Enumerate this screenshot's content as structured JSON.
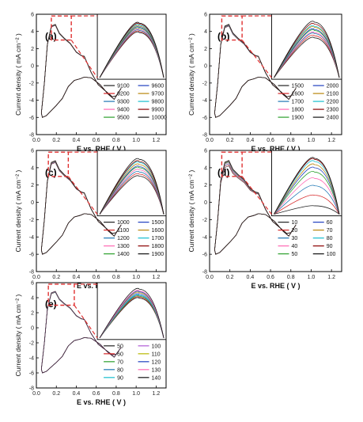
{
  "figure": {
    "ylabel": "Current density ( mA cm⁻² )",
    "xlabel": "E vs. RHE ( V )"
  },
  "chart_data": [
    {
      "type": "line",
      "panel": "(a)",
      "xlabel": "E vs. RHE ( V )",
      "ylabel": "Current density ( mA cm⁻² )",
      "xlim": [
        0.0,
        1.3
      ],
      "ylim": [
        -8,
        6
      ],
      "xticks": [
        "0.0",
        "0.2",
        "0.4",
        "0.6",
        "0.8",
        "1.0",
        "1.2"
      ],
      "yticks": [
        "-8",
        "-6",
        "-4",
        "-2",
        "0",
        "2",
        "4",
        "6"
      ],
      "inset_xrange": [
        0.15,
        0.35
      ],
      "inset_peaks": [
        4.3,
        4.4,
        4.5,
        4.6,
        4.7,
        4.8,
        4.9,
        5.0,
        5.1,
        5.2
      ],
      "legend": [
        "9100",
        "9200",
        "9300",
        "9400",
        "9500",
        "9600",
        "9700",
        "9800",
        "9900",
        "10000"
      ],
      "legend_colors": [
        "#222222",
        "#d62728",
        "#1f77b4",
        "#ff69b4",
        "#2ca02c",
        "#1f3fbf",
        "#b8860b",
        "#17becf",
        "#8b0000",
        "#111111"
      ]
    },
    {
      "type": "line",
      "panel": "(b)",
      "xlabel": "E vs. RHE ( V )",
      "ylabel": "Current density ( mA cm⁻² )",
      "xlim": [
        0.0,
        1.3
      ],
      "ylim": [
        -8,
        6
      ],
      "xticks": [
        "0.0",
        "0.2",
        "0.4",
        "0.6",
        "0.8",
        "1.0",
        "1.2"
      ],
      "yticks": [
        "-8",
        "-6",
        "-4",
        "-2",
        "0",
        "2",
        "4",
        "6"
      ],
      "inset_xrange": [
        0.12,
        0.32
      ],
      "inset_peaks": [
        3.8,
        4.0,
        4.2,
        4.3,
        4.5,
        4.6,
        4.8,
        4.9,
        5.1,
        5.3
      ],
      "legend": [
        "1500",
        "1600",
        "1700",
        "1800",
        "1900",
        "2000",
        "2100",
        "2200",
        "2300",
        "2400"
      ],
      "legend_colors": [
        "#222222",
        "#d62728",
        "#1f77b4",
        "#ff69b4",
        "#2ca02c",
        "#1f3fbf",
        "#b8860b",
        "#17becf",
        "#8b0000",
        "#111111"
      ]
    },
    {
      "type": "line",
      "panel": "(c)",
      "xlabel": "E vs. RHE ( V )",
      "ylabel": "Current density ( mA cm⁻² )",
      "xlim": [
        0.0,
        1.3
      ],
      "ylim": [
        -8,
        6
      ],
      "xticks": [
        "0.0",
        "0.2",
        "0.4",
        "0.6",
        "0.8",
        "1.0",
        "1.2"
      ],
      "yticks": [
        "-8",
        "-6",
        "-4",
        "-2",
        "0",
        "2",
        "4",
        "6"
      ],
      "inset_xrange": [
        0.12,
        0.32
      ],
      "inset_peaks": [
        3.6,
        3.8,
        4.0,
        4.2,
        4.4,
        4.5,
        4.7,
        4.9,
        5.0,
        5.2
      ],
      "legend": [
        "1000",
        "1100",
        "1200",
        "1300",
        "1400",
        "1500",
        "1600",
        "1700",
        "1800",
        "1900"
      ],
      "legend_colors": [
        "#222222",
        "#d62728",
        "#1f77b4",
        "#ff69b4",
        "#2ca02c",
        "#1f3fbf",
        "#b8860b",
        "#17becf",
        "#8b0000",
        "#111111"
      ]
    },
    {
      "type": "line",
      "panel": "(d)",
      "xlabel": "E vs. RHE ( V )",
      "ylabel": "Current density ( mA cm⁻² )",
      "xlim": [
        0.0,
        1.3
      ],
      "ylim": [
        -8,
        6
      ],
      "xticks": [
        "0.0",
        "0.2",
        "0.4",
        "0.6",
        "0.8",
        "1.0",
        "1.2"
      ],
      "yticks": [
        "-8",
        "-6",
        "-4",
        "-2",
        "0",
        "2",
        "4",
        "6"
      ],
      "inset_xrange": [
        0.12,
        0.32
      ],
      "inset_peaks": [
        0.8,
        1.8,
        2.7,
        3.4,
        4.0,
        4.4,
        4.7,
        5.0,
        5.2,
        5.3
      ],
      "legend": [
        "10",
        "20",
        "30",
        "40",
        "50",
        "60",
        "70",
        "80",
        "90",
        "100"
      ],
      "legend_colors": [
        "#222222",
        "#d62728",
        "#1f77b4",
        "#ff69b4",
        "#2ca02c",
        "#1f3fbf",
        "#b8860b",
        "#17becf",
        "#8b0000",
        "#111111"
      ]
    },
    {
      "type": "line",
      "panel": "(e)",
      "xlabel": "E vs. RHE ( V )",
      "ylabel": "Current density ( mA cm⁻² )",
      "xlim": [
        0.0,
        1.3
      ],
      "ylim": [
        -8,
        6
      ],
      "xticks": [
        "0.0",
        "0.2",
        "0.4",
        "0.6",
        "0.8",
        "1.0",
        "1.2"
      ],
      "yticks": [
        "-8",
        "-6",
        "-4",
        "-2",
        "0",
        "2",
        "4",
        "6"
      ],
      "inset_xrange": [
        0.12,
        0.38
      ],
      "inset_peaks": [
        4.4,
        4.5,
        4.6,
        4.7,
        4.8,
        4.9,
        5.0,
        5.1,
        5.2,
        5.4
      ],
      "legend": [
        "50",
        "60",
        "70",
        "80",
        "90",
        "100",
        "110",
        "120",
        "130",
        "140"
      ],
      "legend_colors": [
        "#222222",
        "#d62728",
        "#2ca02c",
        "#1f77b4",
        "#17becf",
        "#b05bd6",
        "#b8b800",
        "#1f3fbf",
        "#ff69b4",
        "#111111"
      ]
    }
  ]
}
